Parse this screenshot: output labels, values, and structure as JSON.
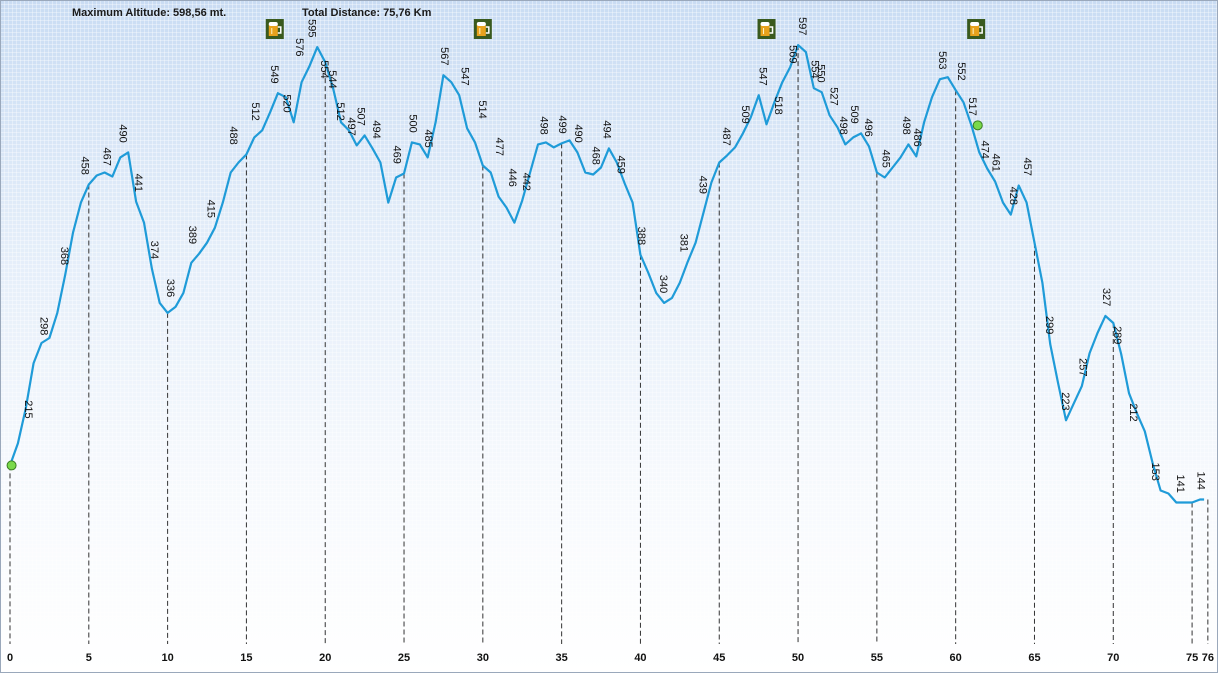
{
  "header": {
    "max_altitude": "Maximum Altitude: 598,56 mt.",
    "total_distance": "Total Distance: 75,76 Km"
  },
  "colors": {
    "profile_line": "#1f9bd8",
    "marker_fill": "#7ad94a",
    "marker_stroke": "#3a7d22",
    "tick_line": "#333333",
    "text": "#111111"
  },
  "icons": [
    "beer-mug-icon",
    "beer-mug-icon",
    "beer-mug-icon",
    "beer-mug-icon"
  ],
  "chart_data": {
    "type": "area",
    "title": "",
    "xlabel": "",
    "ylabel": "",
    "x_unit": "km",
    "y_unit": "m",
    "xlim": [
      0,
      76.2
    ],
    "ylim": [
      0,
      620
    ],
    "grid": false,
    "x_ticks": [
      0,
      5,
      10,
      15,
      20,
      25,
      30,
      35,
      40,
      45,
      50,
      55,
      60,
      65,
      70,
      75,
      76
    ],
    "x_tick_labels": [
      "0",
      "5",
      "10",
      "15",
      "20",
      "25",
      "30",
      "35",
      "40",
      "45",
      "50",
      "55",
      "60",
      "65",
      "70",
      "75",
      "76"
    ],
    "profile": [
      [
        0,
        178
      ],
      [
        0.5,
        200
      ],
      [
        1,
        235
      ],
      [
        1.5,
        280
      ],
      [
        2,
        300
      ],
      [
        2.5,
        305
      ],
      [
        3,
        330
      ],
      [
        3.5,
        368
      ],
      [
        4,
        410
      ],
      [
        4.5,
        440
      ],
      [
        5,
        458
      ],
      [
        5.5,
        467
      ],
      [
        6,
        470
      ],
      [
        6.5,
        466
      ],
      [
        7,
        485
      ],
      [
        7.5,
        490
      ],
      [
        8,
        441
      ],
      [
        8.5,
        420
      ],
      [
        9,
        374
      ],
      [
        9.5,
        340
      ],
      [
        10,
        330
      ],
      [
        10.5,
        336
      ],
      [
        11,
        350
      ],
      [
        11.5,
        380
      ],
      [
        12,
        389
      ],
      [
        12.5,
        400
      ],
      [
        13,
        415
      ],
      [
        13.5,
        440
      ],
      [
        14,
        470
      ],
      [
        14.5,
        480
      ],
      [
        15,
        488
      ],
      [
        15.5,
        505
      ],
      [
        16,
        512
      ],
      [
        16.5,
        530
      ],
      [
        17,
        549
      ],
      [
        17.5,
        545
      ],
      [
        18,
        520
      ],
      [
        18.5,
        560
      ],
      [
        19,
        576
      ],
      [
        19.5,
        595
      ],
      [
        20,
        580
      ],
      [
        20.5,
        554
      ],
      [
        21,
        520
      ],
      [
        21.5,
        512
      ],
      [
        22,
        497
      ],
      [
        22.5,
        507
      ],
      [
        23,
        494
      ],
      [
        23.5,
        480
      ],
      [
        24,
        440
      ],
      [
        24.5,
        465
      ],
      [
        25,
        469
      ],
      [
        25.5,
        500
      ],
      [
        26,
        498
      ],
      [
        26.5,
        485
      ],
      [
        27,
        520
      ],
      [
        27.5,
        567
      ],
      [
        28,
        560
      ],
      [
        28.5,
        547
      ],
      [
        29,
        514
      ],
      [
        29.5,
        500
      ],
      [
        30,
        477
      ],
      [
        30.5,
        470
      ],
      [
        31,
        446
      ],
      [
        31.5,
        435
      ],
      [
        32,
        420
      ],
      [
        32.5,
        442
      ],
      [
        33,
        470
      ],
      [
        33.5,
        498
      ],
      [
        34,
        500
      ],
      [
        34.5,
        495
      ],
      [
        35,
        499
      ],
      [
        35.5,
        502
      ],
      [
        36,
        490
      ],
      [
        36.5,
        470
      ],
      [
        37,
        468
      ],
      [
        37.5,
        475
      ],
      [
        38,
        494
      ],
      [
        38.5,
        480
      ],
      [
        39,
        459
      ],
      [
        39.5,
        440
      ],
      [
        40,
        388
      ],
      [
        40.5,
        370
      ],
      [
        41,
        350
      ],
      [
        41.5,
        340
      ],
      [
        42,
        345
      ],
      [
        42.5,
        360
      ],
      [
        43,
        381
      ],
      [
        43.5,
        400
      ],
      [
        44,
        430
      ],
      [
        44.5,
        460
      ],
      [
        45,
        480
      ],
      [
        45.5,
        487
      ],
      [
        46,
        495
      ],
      [
        46.5,
        509
      ],
      [
        47,
        525
      ],
      [
        47.5,
        547
      ],
      [
        48,
        518
      ],
      [
        48.5,
        540
      ],
      [
        49,
        560
      ],
      [
        49.5,
        575
      ],
      [
        50,
        597
      ],
      [
        50.5,
        590
      ],
      [
        51,
        554
      ],
      [
        51.5,
        550
      ],
      [
        52,
        527
      ],
      [
        52.5,
        515
      ],
      [
        53,
        498
      ],
      [
        53.5,
        505
      ],
      [
        54,
        509
      ],
      [
        54.5,
        496
      ],
      [
        55,
        470
      ],
      [
        55.5,
        465
      ],
      [
        56,
        475
      ],
      [
        56.5,
        485
      ],
      [
        57,
        498
      ],
      [
        57.5,
        486
      ],
      [
        58,
        520
      ],
      [
        58.5,
        545
      ],
      [
        59,
        563
      ],
      [
        59.5,
        565
      ],
      [
        60,
        552
      ],
      [
        60.5,
        540
      ],
      [
        61,
        517
      ],
      [
        61.5,
        490
      ],
      [
        62,
        474
      ],
      [
        62.5,
        461
      ],
      [
        63,
        440
      ],
      [
        63.5,
        428
      ],
      [
        64,
        457
      ],
      [
        64.5,
        440
      ],
      [
        65,
        400
      ],
      [
        65.5,
        360
      ],
      [
        66,
        299
      ],
      [
        66.5,
        260
      ],
      [
        67,
        223
      ],
      [
        67.5,
        240
      ],
      [
        68,
        257
      ],
      [
        68.5,
        290
      ],
      [
        69,
        310
      ],
      [
        69.5,
        327
      ],
      [
        70,
        320
      ],
      [
        70.5,
        289
      ],
      [
        71,
        250
      ],
      [
        71.5,
        230
      ],
      [
        72,
        212
      ],
      [
        72.5,
        180
      ],
      [
        73,
        153
      ],
      [
        73.5,
        150
      ],
      [
        74,
        141
      ],
      [
        74.5,
        141
      ],
      [
        75,
        141
      ],
      [
        75.5,
        144
      ],
      [
        75.76,
        144
      ]
    ],
    "altitude_labels": [
      {
        "x": 1.2,
        "y": 215,
        "label": "215"
      },
      {
        "x": 2.2,
        "y": 298,
        "label": "298"
      },
      {
        "x": 3.5,
        "y": 368,
        "label": "368"
      },
      {
        "x": 4.8,
        "y": 458,
        "label": "458"
      },
      {
        "x": 6.2,
        "y": 467,
        "label": "467"
      },
      {
        "x": 7.2,
        "y": 490,
        "label": "490"
      },
      {
        "x": 8.2,
        "y": 441,
        "label": "441"
      },
      {
        "x": 9.2,
        "y": 374,
        "label": "374"
      },
      {
        "x": 10.2,
        "y": 336,
        "label": "336"
      },
      {
        "x": 11.6,
        "y": 389,
        "label": "389"
      },
      {
        "x": 12.8,
        "y": 415,
        "label": "415"
      },
      {
        "x": 14.2,
        "y": 488,
        "label": "488"
      },
      {
        "x": 15.6,
        "y": 512,
        "label": "512"
      },
      {
        "x": 16.8,
        "y": 549,
        "label": "549"
      },
      {
        "x": 17.6,
        "y": 520,
        "label": "520"
      },
      {
        "x": 18.4,
        "y": 576,
        "label": "576"
      },
      {
        "x": 19.2,
        "y": 595,
        "label": "595"
      },
      {
        "x": 20.0,
        "y": 554,
        "label": "554"
      },
      {
        "x": 20.5,
        "y": 544,
        "label": "544"
      },
      {
        "x": 21.0,
        "y": 512,
        "label": "512"
      },
      {
        "x": 21.7,
        "y": 497,
        "label": "497"
      },
      {
        "x": 22.3,
        "y": 507,
        "label": "507"
      },
      {
        "x": 23.3,
        "y": 494,
        "label": "494"
      },
      {
        "x": 24.6,
        "y": 469,
        "label": "469"
      },
      {
        "x": 25.6,
        "y": 500,
        "label": "500"
      },
      {
        "x": 26.6,
        "y": 485,
        "label": "485"
      },
      {
        "x": 27.6,
        "y": 567,
        "label": "567"
      },
      {
        "x": 28.9,
        "y": 547,
        "label": "547"
      },
      {
        "x": 30.0,
        "y": 514,
        "label": "514"
      },
      {
        "x": 31.1,
        "y": 477,
        "label": "477"
      },
      {
        "x": 31.9,
        "y": 446,
        "label": "446"
      },
      {
        "x": 32.8,
        "y": 442,
        "label": "442"
      },
      {
        "x": 33.9,
        "y": 498,
        "label": "498"
      },
      {
        "x": 35.1,
        "y": 499,
        "label": "499"
      },
      {
        "x": 36.1,
        "y": 490,
        "label": "490"
      },
      {
        "x": 37.2,
        "y": 468,
        "label": "468"
      },
      {
        "x": 37.9,
        "y": 494,
        "label": "494"
      },
      {
        "x": 38.8,
        "y": 459,
        "label": "459"
      },
      {
        "x": 40.1,
        "y": 388,
        "label": "388"
      },
      {
        "x": 41.5,
        "y": 340,
        "label": "340"
      },
      {
        "x": 42.8,
        "y": 381,
        "label": "381"
      },
      {
        "x": 44.0,
        "y": 439,
        "label": "439"
      },
      {
        "x": 45.5,
        "y": 487,
        "label": "487"
      },
      {
        "x": 46.7,
        "y": 509,
        "label": "509"
      },
      {
        "x": 47.8,
        "y": 547,
        "label": "547"
      },
      {
        "x": 48.8,
        "y": 518,
        "label": "518"
      },
      {
        "x": 49.7,
        "y": 569,
        "label": "569"
      },
      {
        "x": 50.3,
        "y": 597,
        "label": "597"
      },
      {
        "x": 51.1,
        "y": 554,
        "label": "554"
      },
      {
        "x": 51.5,
        "y": 550,
        "label": "550"
      },
      {
        "x": 52.3,
        "y": 527,
        "label": "527"
      },
      {
        "x": 52.9,
        "y": 498,
        "label": "498"
      },
      {
        "x": 53.6,
        "y": 509,
        "label": "509"
      },
      {
        "x": 54.5,
        "y": 496,
        "label": "496"
      },
      {
        "x": 55.6,
        "y": 465,
        "label": "465"
      },
      {
        "x": 56.9,
        "y": 498,
        "label": "498"
      },
      {
        "x": 57.6,
        "y": 486,
        "label": "486"
      },
      {
        "x": 59.2,
        "y": 563,
        "label": "563"
      },
      {
        "x": 60.4,
        "y": 552,
        "label": "552"
      },
      {
        "x": 61.1,
        "y": 517,
        "label": "517"
      },
      {
        "x": 61.9,
        "y": 474,
        "label": "474"
      },
      {
        "x": 62.6,
        "y": 461,
        "label": "461"
      },
      {
        "x": 63.7,
        "y": 428,
        "label": "428"
      },
      {
        "x": 64.6,
        "y": 457,
        "label": "457"
      },
      {
        "x": 66.0,
        "y": 299,
        "label": "299"
      },
      {
        "x": 67.0,
        "y": 223,
        "label": "223"
      },
      {
        "x": 68.1,
        "y": 257,
        "label": "257"
      },
      {
        "x": 69.6,
        "y": 327,
        "label": "327"
      },
      {
        "x": 70.3,
        "y": 289,
        "label": "289"
      },
      {
        "x": 71.3,
        "y": 212,
        "label": "212"
      },
      {
        "x": 72.7,
        "y": 153,
        "label": "153"
      },
      {
        "x": 74.3,
        "y": 141,
        "label": "141"
      },
      {
        "x": 75.6,
        "y": 144,
        "label": "144"
      }
    ],
    "waypoints": [
      {
        "x": 0.1,
        "y": 178,
        "type": "marker"
      },
      {
        "x": 61.4,
        "y": 517,
        "type": "marker"
      }
    ],
    "amenities": [
      {
        "x": 16.8,
        "icon": "beer-mug-icon"
      },
      {
        "x": 30.0,
        "icon": "beer-mug-icon"
      },
      {
        "x": 48.0,
        "icon": "beer-mug-icon"
      },
      {
        "x": 61.3,
        "icon": "beer-mug-icon"
      }
    ]
  }
}
